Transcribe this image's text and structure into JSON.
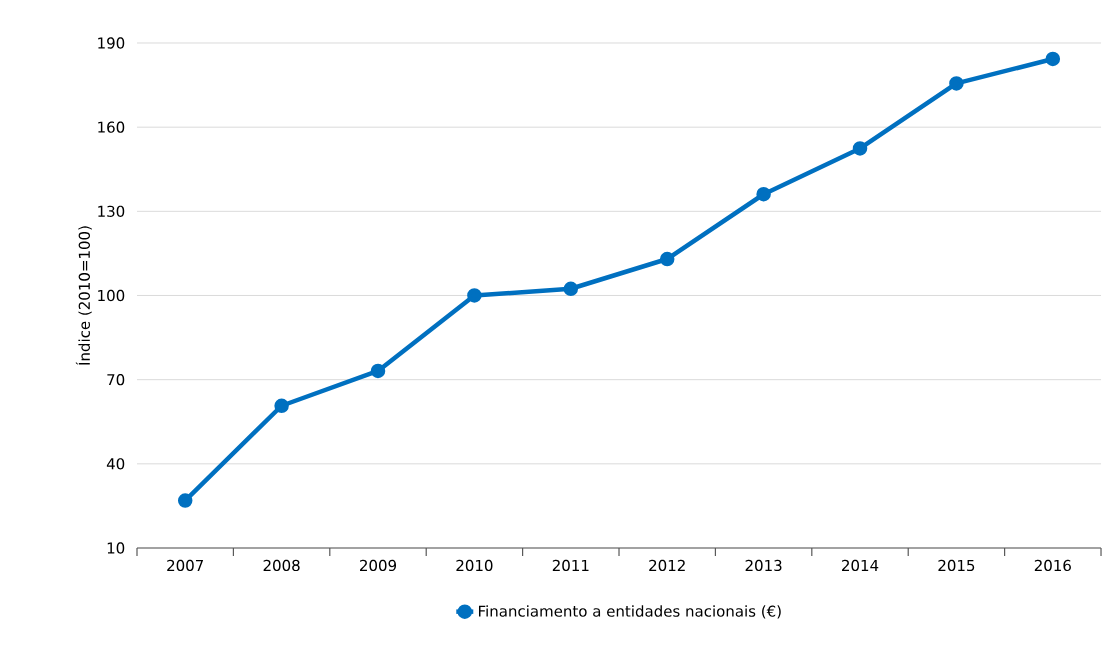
{
  "chart_data": {
    "type": "line",
    "ylabel": "Índice (2010=100)",
    "categories": [
      "2007",
      "2008",
      "2009",
      "2010",
      "2011",
      "2012",
      "2013",
      "2014",
      "2015",
      "2016"
    ],
    "series": [
      {
        "name": "Financiamento a entidades nacionais (€)",
        "color": "#0070c0",
        "values": [
          26.9,
          60.7,
          73.1,
          100,
          102.4,
          113.0,
          136.1,
          152.4,
          175.6,
          184.3
        ]
      }
    ],
    "ylim": [
      10,
      190
    ],
    "yticks": [
      10,
      40,
      70,
      100,
      130,
      160,
      190
    ],
    "grid": "y",
    "legend": "bottom",
    "marker": "circle",
    "line_style": "solid"
  }
}
